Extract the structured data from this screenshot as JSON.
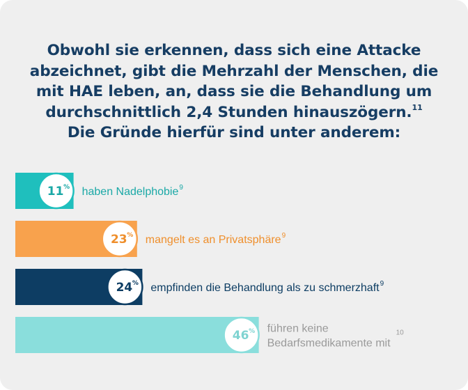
{
  "headline": {
    "text": "Obwohl sie erkennen, dass sich eine Attacke abzeichnet, gibt die Mehrzahl der Menschen, die mit HAE leben, an, dass sie die Behandlung um durchschnittlich 2,4 Stunden hinauszögern.",
    "footnote": "11",
    "line2": "Die Gründe hierfür sind unter anderem:"
  },
  "colors": {
    "headline": "#163d63",
    "background": "#efefef"
  },
  "chart_data": {
    "type": "bar",
    "orientation": "horizontal",
    "unit": "%",
    "categories": [
      "haben Nadelphobie",
      "mangelt es an Privatsphäre",
      "empfinden die Behandlung als zu schmerzhaft",
      "führen keine Bedarfsmedikamente mit"
    ],
    "values": [
      11,
      23,
      24,
      46
    ],
    "value_labels": [
      "11",
      "23",
      "24",
      "46"
    ],
    "label_lines": [
      [
        "haben Nadelphobie"
      ],
      [
        "mangelt es an Privatsphäre"
      ],
      [
        "empfinden die Behandlung als zu schmerzhaft"
      ],
      [
        "führen keine",
        "Bedarfsmedikamente mit"
      ]
    ],
    "footnotes": [
      "9",
      "9",
      "9",
      "10"
    ],
    "bar_colors": [
      "#1fbfbd",
      "#f8a24d",
      "#0d3d63",
      "#8adedc"
    ],
    "label_colors": [
      "#1aa8a6",
      "#ef8f2c",
      "#0d3d63",
      "#9a9a9a"
    ],
    "value_colors": [
      "#1aa8a6",
      "#ef8f2c",
      "#0d3d63",
      "#7fd3d1"
    ]
  }
}
